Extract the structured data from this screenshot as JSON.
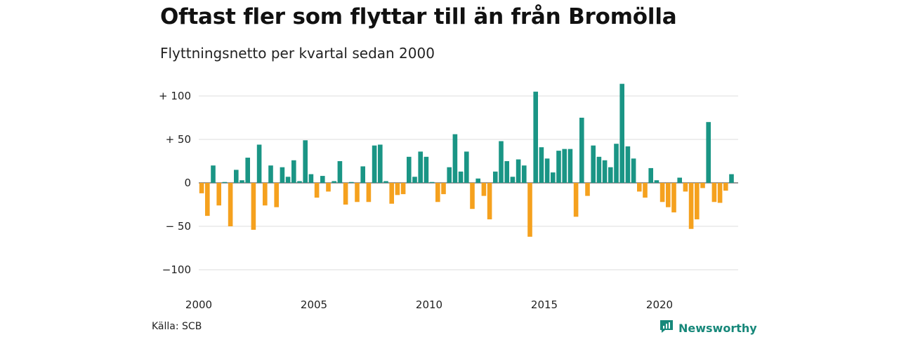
{
  "title": "Oftast fler som flyttar till än från Bromölla",
  "subtitle": "Flyttningsnetto per kvartal sedan 2000",
  "source": "Källa: SCB",
  "brand": {
    "name": "Newsworthy",
    "icon": "newsworthy-logo-icon",
    "color": "#17887a"
  },
  "chart_data": {
    "type": "bar",
    "title": "Oftast fler som flyttar till än från Bromölla",
    "subtitle": "Flyttningsnetto per kvartal sedan 2000",
    "xlabel": "",
    "ylabel": "",
    "ylim": [
      -100,
      115
    ],
    "grid": true,
    "positive_color": "#1a9585",
    "negative_color": "#f5a11e",
    "y_ticks": [
      {
        "value": 100,
        "label": "+ 100"
      },
      {
        "value": 50,
        "label": "+  50"
      },
      {
        "value": 0,
        "label": "0"
      },
      {
        "value": -50,
        "label": "− 50"
      },
      {
        "value": -100,
        "label": "−100"
      }
    ],
    "x_ticks": [
      {
        "value": "2000",
        "label": "2000"
      },
      {
        "value": "2005",
        "label": "2005"
      },
      {
        "value": "2010",
        "label": "2010"
      },
      {
        "value": "2015",
        "label": "2015"
      },
      {
        "value": "2020",
        "label": "2020"
      }
    ],
    "start": "2000 Q1",
    "values": [
      -12,
      -38,
      20,
      -26,
      1,
      -50,
      15,
      3,
      29,
      -54,
      44,
      -26,
      20,
      -28,
      18,
      7,
      26,
      2,
      49,
      10,
      -17,
      8,
      -10,
      2,
      25,
      -25,
      1,
      -22,
      19,
      -22,
      43,
      44,
      2,
      -24,
      -14,
      -13,
      30,
      7,
      36,
      30,
      1,
      -22,
      -13,
      18,
      56,
      13,
      36,
      -30,
      5,
      -15,
      -42,
      13,
      48,
      25,
      7,
      27,
      20,
      -62,
      105,
      41,
      28,
      12,
      37,
      39,
      39,
      -39,
      75,
      -15,
      43,
      30,
      26,
      18,
      45,
      114,
      42,
      28,
      -10,
      -17,
      17,
      3,
      -22,
      -28,
      -34,
      6,
      -10,
      -53,
      -42,
      -6,
      70,
      -22,
      -23,
      -9,
      10
    ]
  }
}
